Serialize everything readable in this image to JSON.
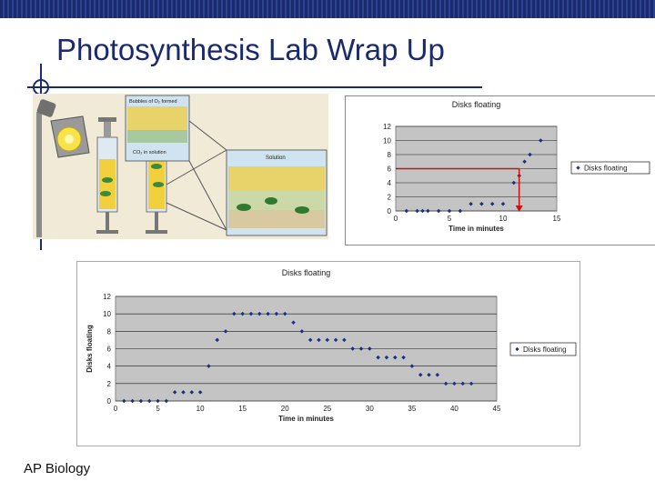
{
  "slide": {
    "title": "Photosynthesis Lab Wrap Up",
    "footer": "AP Biology",
    "accent_color": "#1a2a6e"
  },
  "illustration": {
    "label_bubbles": "Bubbles of O₂ formed",
    "label_co2": "CO₂ in solution",
    "label_solution": "Solution",
    "icons": [
      "lamp-icon",
      "syringe-icon",
      "leaf-cross-section-icon"
    ]
  },
  "chart_data": [
    {
      "type": "scatter",
      "title": "Disks floating",
      "legend": "Disks floating",
      "legend_position": "right",
      "xlim": [
        0,
        15
      ],
      "ylim": [
        0,
        12
      ],
      "xticks": [
        0,
        5,
        10,
        15
      ],
      "yticks": [
        0,
        2,
        4,
        6,
        8,
        10,
        12
      ],
      "xlabel": "Time in minutes",
      "ylabel": "",
      "grid": true,
      "annotation": {
        "y": 6,
        "x": 11.5,
        "color": "#cc1111"
      },
      "series": [
        {
          "x": [
            1,
            2,
            2.5,
            3,
            4,
            5,
            6,
            7,
            8,
            9,
            10,
            11,
            11.5,
            12,
            12.5,
            13.5
          ],
          "y": [
            0,
            0,
            0,
            0,
            0,
            0,
            0,
            1,
            1,
            1,
            1,
            4,
            5,
            7,
            8,
            10
          ]
        }
      ]
    },
    {
      "type": "scatter",
      "title": "Disks floating",
      "legend": "Disks floating",
      "legend_position": "right",
      "xlim": [
        0,
        45
      ],
      "ylim": [
        0,
        12
      ],
      "xticks": [
        0,
        5,
        10,
        15,
        20,
        25,
        30,
        35,
        40,
        45
      ],
      "yticks": [
        0,
        2,
        4,
        6,
        8,
        10,
        12
      ],
      "xlabel": "Time in minutes",
      "ylabel": "Disks floating",
      "grid": true,
      "series": [
        {
          "x": [
            1,
            2,
            3,
            4,
            5,
            6,
            7,
            8,
            9,
            10,
            11,
            12,
            13,
            14,
            15,
            16,
            17,
            18,
            19,
            20,
            21,
            22,
            23,
            24,
            25,
            26,
            27,
            28,
            29,
            30,
            31,
            32,
            33,
            34,
            35,
            36,
            37,
            38,
            39,
            40,
            41,
            42
          ],
          "y": [
            0,
            0,
            0,
            0,
            0,
            0,
            1,
            1,
            1,
            1,
            4,
            7,
            8,
            10,
            10,
            10,
            10,
            10,
            10,
            10,
            9,
            8,
            7,
            7,
            7,
            7,
            7,
            6,
            6,
            6,
            5,
            5,
            5,
            5,
            4,
            3,
            3,
            3,
            2,
            2,
            2,
            2
          ]
        }
      ]
    }
  ]
}
